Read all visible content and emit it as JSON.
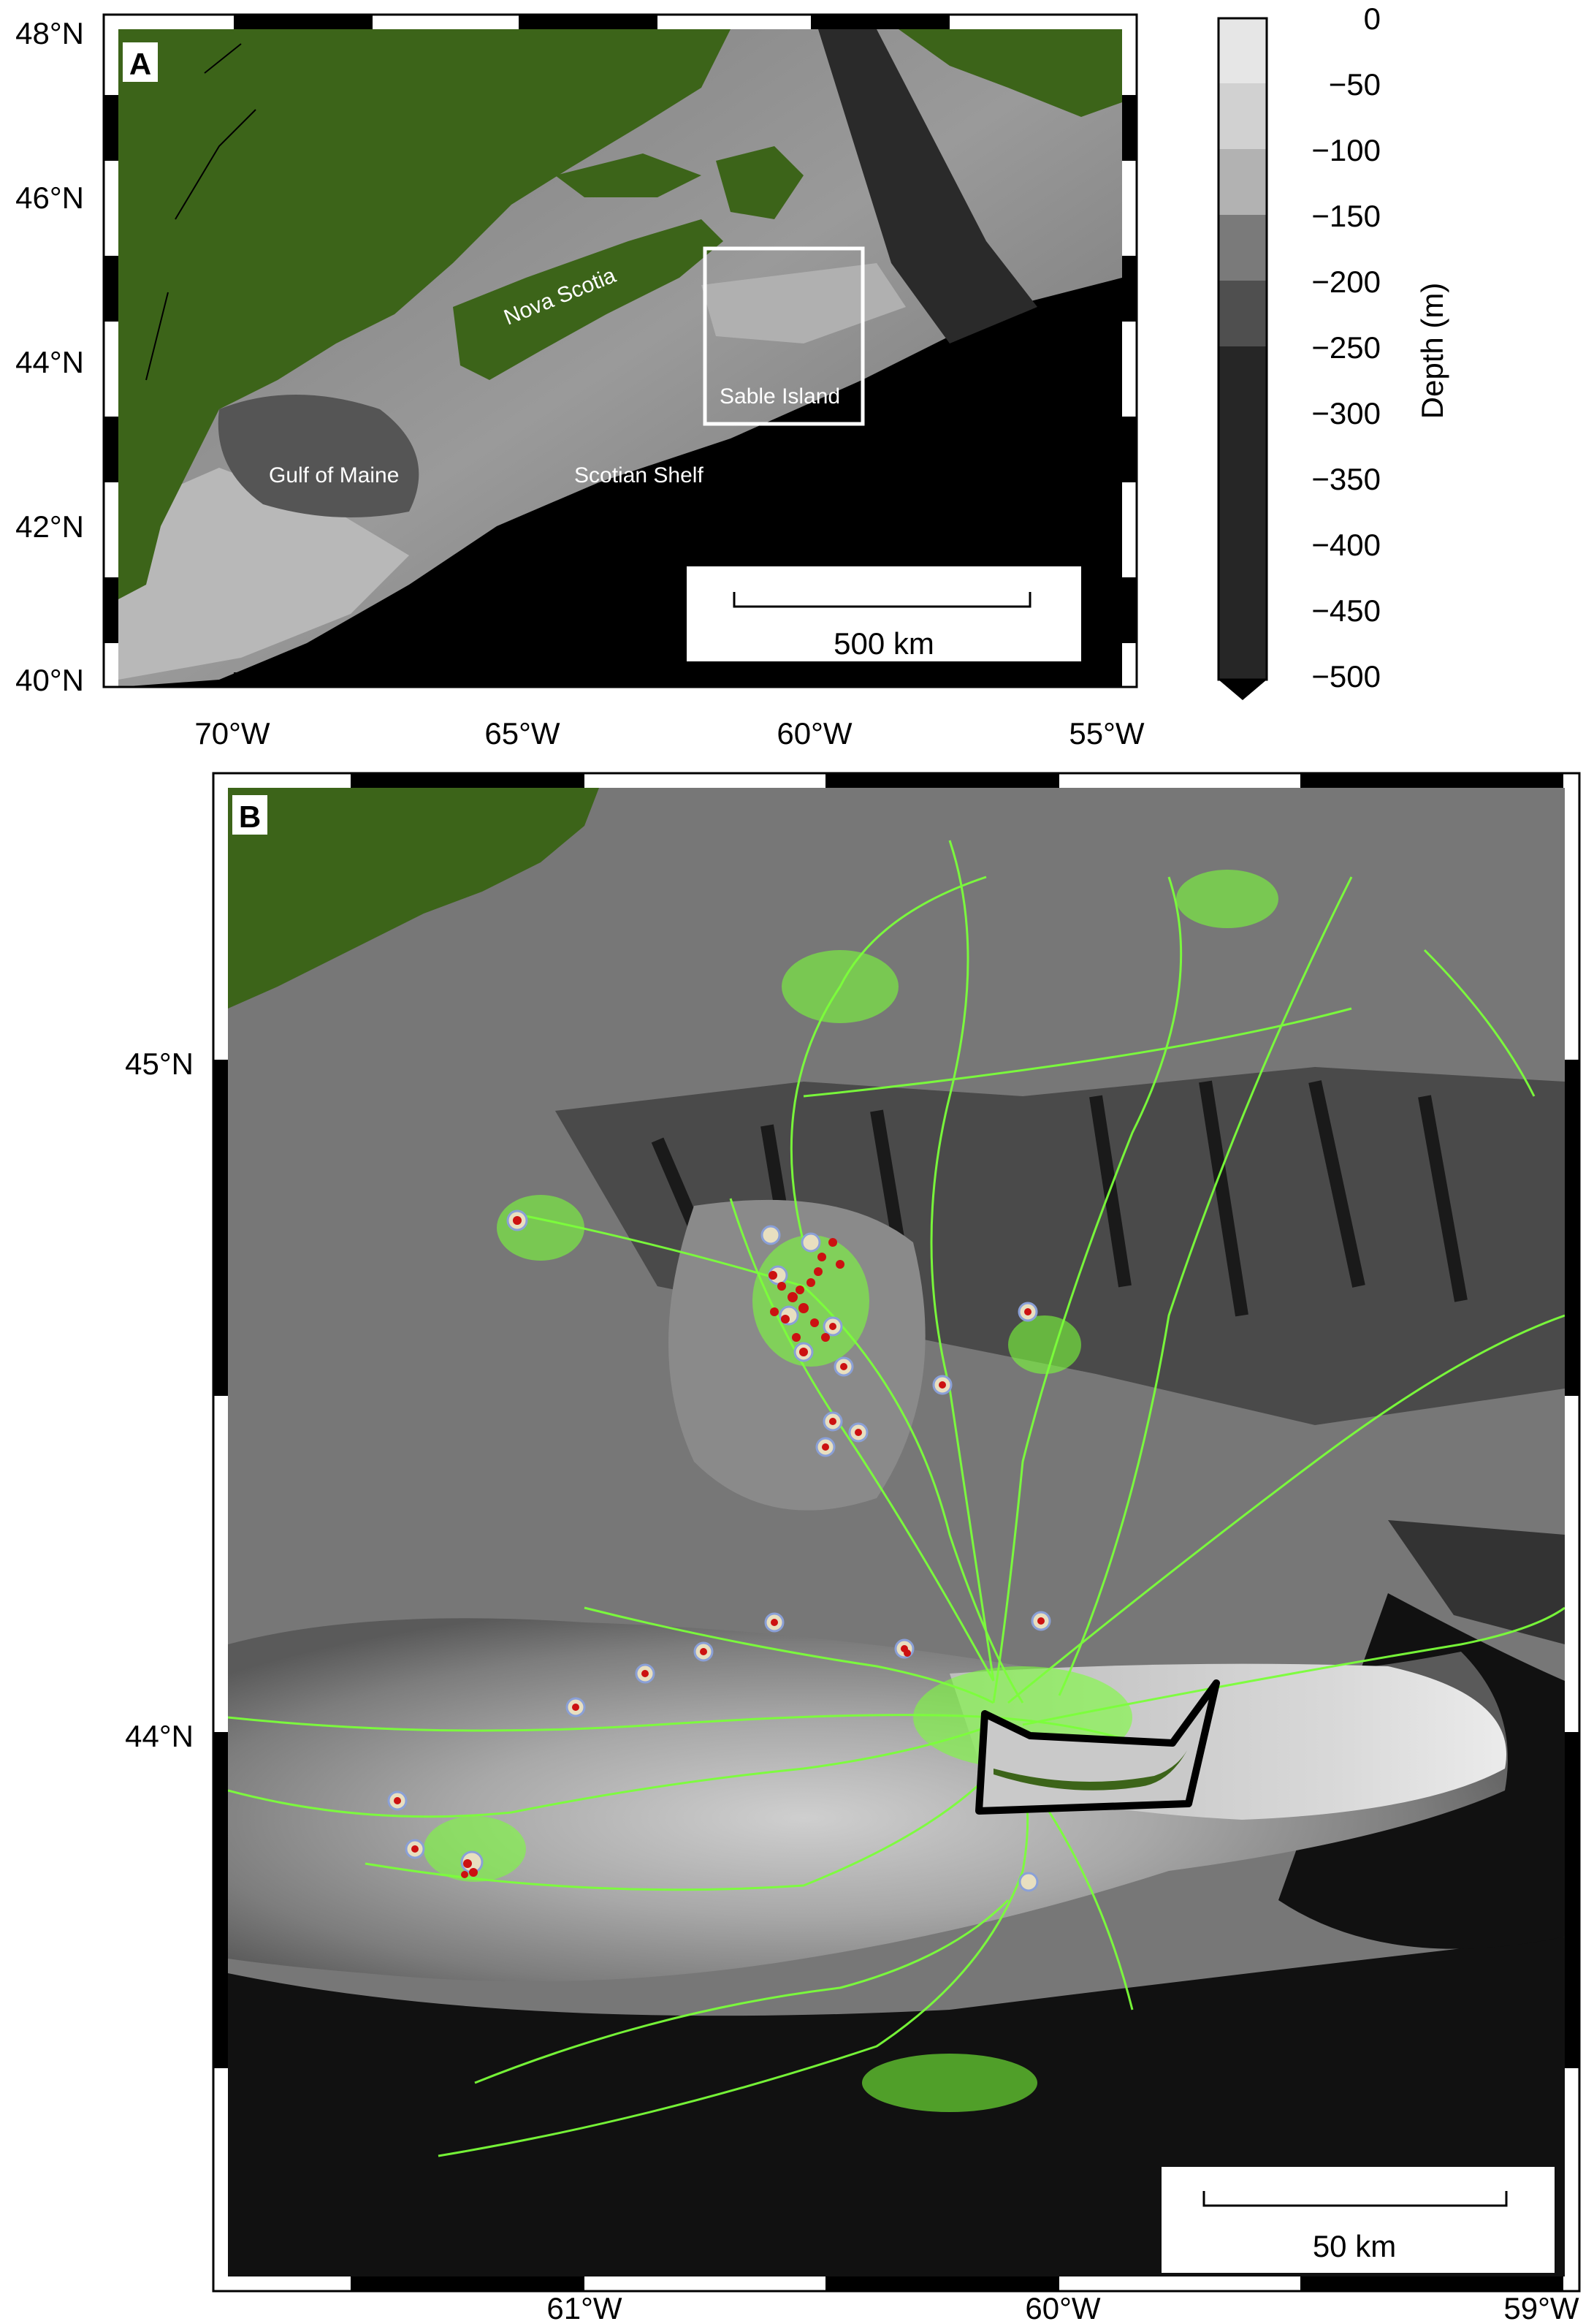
{
  "panel_a": {
    "letter": "A",
    "lat_labels": [
      "48°N",
      "46°N",
      "44°N",
      "42°N",
      "40°N"
    ],
    "lon_labels": [
      "70°W",
      "65°W",
      "60°W",
      "55°W"
    ],
    "place_labels": {
      "nova_scotia": "Nova Scotia",
      "sable_island": "Sable Island",
      "gulf_of_maine": "Gulf of Maine",
      "scotian_shelf": "Scotian Shelf"
    },
    "scale_bar": "500 km"
  },
  "colorbar": {
    "title": "Depth (m)",
    "ticks": [
      "0",
      "−50",
      "−100",
      "−150",
      "−200",
      "−250",
      "−300",
      "−350",
      "−400",
      "−450",
      "−500"
    ]
  },
  "panel_b": {
    "letter": "B",
    "lat_labels": [
      "45°N",
      "44°N"
    ],
    "lon_labels": [
      "61°W",
      "60°W",
      "59°W"
    ],
    "scale_bar": "50 km"
  },
  "colors": {
    "land": "#3c6419",
    "tracks": "#7bff3a",
    "haulout": "#cc1111",
    "deep": "#000000",
    "shallow": "#e8e8e8"
  }
}
